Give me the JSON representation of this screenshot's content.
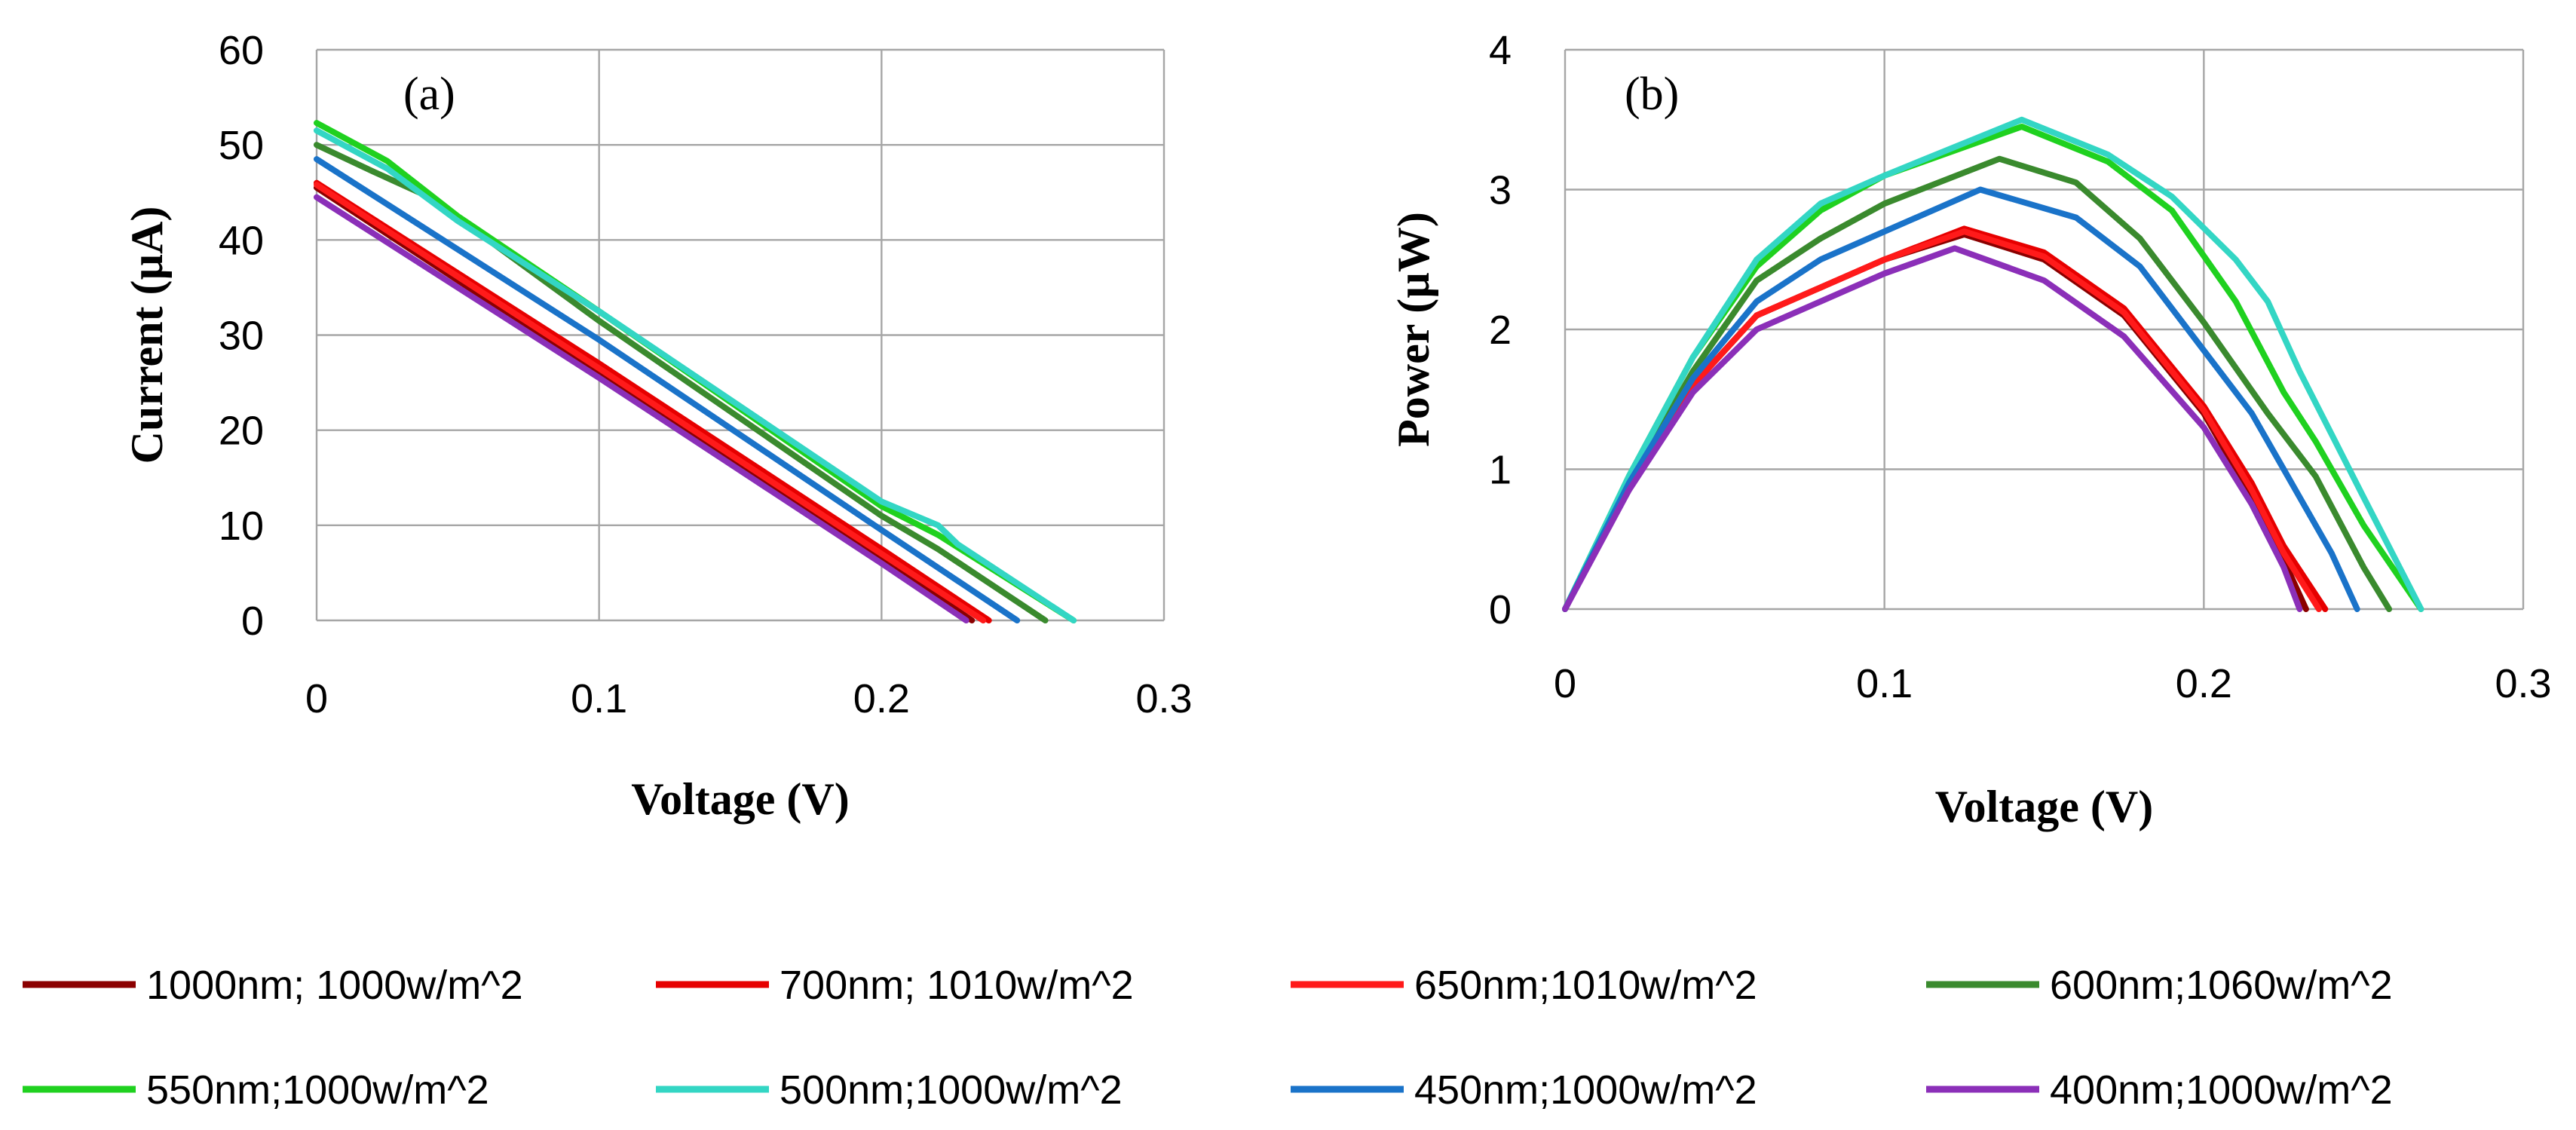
{
  "chart_data": [
    {
      "type": "line",
      "panel_label": "(a)",
      "xlabel": "Voltage (V)",
      "ylabel": "Current (µA)",
      "xlim": [
        0,
        0.3
      ],
      "ylim": [
        0,
        60
      ],
      "xticks": [
        "0",
        "0.1",
        "0.2",
        "0.3"
      ],
      "yticks": [
        "0",
        "10",
        "20",
        "30",
        "40",
        "50",
        "60"
      ],
      "grid": true,
      "series": [
        {
          "name": "1000nm; 1000w/m^2",
          "color": "#8b0000",
          "x": [
            0,
            0.1,
            0.2,
            0.232
          ],
          "y": [
            45.5,
            26.0,
            6.5,
            0
          ]
        },
        {
          "name": "700nm; 1010w/m^2",
          "color": "#e60000",
          "x": [
            0,
            0.1,
            0.2,
            0.238
          ],
          "y": [
            46.0,
            27.0,
            7.5,
            0
          ]
        },
        {
          "name": "650nm;1010w/m^2",
          "color": "#ff1a1a",
          "x": [
            0,
            0.1,
            0.2,
            0.236
          ],
          "y": [
            45.8,
            26.5,
            7.0,
            0
          ]
        },
        {
          "name": "600nm;1060w/m^2",
          "color": "#3a8a2e",
          "x": [
            0,
            0.02,
            0.04,
            0.1,
            0.2,
            0.22,
            0.258
          ],
          "y": [
            50.0,
            47.2,
            44.5,
            31.5,
            11.0,
            7.5,
            0
          ]
        },
        {
          "name": "550nm;1000w/m^2",
          "color": "#1fd11f",
          "x": [
            0,
            0.025,
            0.05,
            0.1,
            0.2,
            0.22,
            0.268
          ],
          "y": [
            52.3,
            48.3,
            42.5,
            32.5,
            12.0,
            9.0,
            0
          ]
        },
        {
          "name": "500nm;1000w/m^2",
          "color": "#33d6c4",
          "x": [
            0,
            0.025,
            0.05,
            0.1,
            0.2,
            0.22,
            0.227,
            0.268
          ],
          "y": [
            51.5,
            47.5,
            42.0,
            32.5,
            12.5,
            10.0,
            8.0,
            0
          ]
        },
        {
          "name": "450nm;1000w/m^2",
          "color": "#1a73c9",
          "x": [
            0,
            0.1,
            0.2,
            0.248
          ],
          "y": [
            48.5,
            29.5,
            9.5,
            0
          ]
        },
        {
          "name": "400nm;1000w/m^2",
          "color": "#8b2fb8",
          "x": [
            0,
            0.1,
            0.2,
            0.23
          ],
          "y": [
            44.5,
            25.5,
            6.0,
            0
          ]
        }
      ]
    },
    {
      "type": "line",
      "panel_label": "(b)",
      "xlabel": "Voltage (V)",
      "ylabel": "Power (µW)",
      "xlim": [
        0,
        0.3
      ],
      "ylim": [
        0,
        4
      ],
      "xticks": [
        "0",
        "0.1",
        "0.2",
        "0.3"
      ],
      "yticks": [
        "0",
        "1",
        "2",
        "3",
        "4"
      ],
      "grid": true,
      "series": [
        {
          "name": "1000nm; 1000w/m^2",
          "color": "#8b0000",
          "x": [
            0,
            0.02,
            0.04,
            0.06,
            0.08,
            0.1,
            0.125,
            0.15,
            0.175,
            0.2,
            0.215,
            0.225,
            0.232
          ],
          "y": [
            0,
            0.9,
            1.6,
            2.1,
            2.3,
            2.5,
            2.68,
            2.5,
            2.1,
            1.4,
            0.8,
            0.35,
            0
          ]
        },
        {
          "name": "700nm; 1010w/m^2",
          "color": "#e60000",
          "x": [
            0,
            0.02,
            0.04,
            0.06,
            0.08,
            0.1,
            0.125,
            0.15,
            0.175,
            0.2,
            0.215,
            0.225,
            0.238
          ],
          "y": [
            0,
            0.9,
            1.6,
            2.1,
            2.3,
            2.5,
            2.72,
            2.55,
            2.15,
            1.45,
            0.9,
            0.45,
            0
          ]
        },
        {
          "name": "650nm;1010w/m^2",
          "color": "#ff1a1a",
          "x": [
            0,
            0.02,
            0.04,
            0.06,
            0.08,
            0.1,
            0.125,
            0.15,
            0.175,
            0.2,
            0.215,
            0.225,
            0.236
          ],
          "y": [
            0,
            0.9,
            1.6,
            2.1,
            2.3,
            2.5,
            2.7,
            2.52,
            2.12,
            1.42,
            0.85,
            0.4,
            0
          ]
        },
        {
          "name": "600nm;1060w/m^2",
          "color": "#3a8a2e",
          "x": [
            0,
            0.02,
            0.04,
            0.06,
            0.08,
            0.1,
            0.136,
            0.16,
            0.18,
            0.2,
            0.22,
            0.235,
            0.25,
            0.258
          ],
          "y": [
            0,
            0.9,
            1.7,
            2.35,
            2.65,
            2.9,
            3.22,
            3.05,
            2.65,
            2.05,
            1.4,
            0.95,
            0.3,
            0
          ]
        },
        {
          "name": "550nm;1000w/m^2",
          "color": "#1fd11f",
          "x": [
            0,
            0.02,
            0.04,
            0.06,
            0.08,
            0.1,
            0.143,
            0.17,
            0.19,
            0.21,
            0.225,
            0.235,
            0.25,
            0.268
          ],
          "y": [
            0,
            0.95,
            1.8,
            2.45,
            2.85,
            3.1,
            3.45,
            3.2,
            2.85,
            2.2,
            1.55,
            1.2,
            0.6,
            0
          ]
        },
        {
          "name": "500nm;1000w/m^2",
          "color": "#33d6c4",
          "x": [
            0,
            0.02,
            0.04,
            0.06,
            0.08,
            0.1,
            0.143,
            0.17,
            0.19,
            0.21,
            0.22,
            0.23,
            0.24,
            0.25,
            0.268
          ],
          "y": [
            0,
            0.95,
            1.8,
            2.5,
            2.9,
            3.1,
            3.5,
            3.25,
            2.95,
            2.5,
            2.2,
            1.7,
            1.25,
            0.8,
            0
          ]
        },
        {
          "name": "450nm;1000w/m^2",
          "color": "#1a73c9",
          "x": [
            0,
            0.02,
            0.04,
            0.06,
            0.08,
            0.1,
            0.13,
            0.16,
            0.18,
            0.2,
            0.215,
            0.225,
            0.24,
            0.248
          ],
          "y": [
            0,
            0.9,
            1.65,
            2.2,
            2.5,
            2.7,
            3.0,
            2.8,
            2.45,
            1.85,
            1.4,
            1.0,
            0.4,
            0
          ]
        },
        {
          "name": "400nm;1000w/m^2",
          "color": "#8b2fb8",
          "x": [
            0,
            0.02,
            0.04,
            0.06,
            0.08,
            0.1,
            0.122,
            0.15,
            0.175,
            0.2,
            0.215,
            0.225,
            0.23
          ],
          "y": [
            0,
            0.85,
            1.55,
            2.0,
            2.2,
            2.4,
            2.58,
            2.35,
            1.95,
            1.3,
            0.75,
            0.3,
            0
          ]
        }
      ]
    }
  ],
  "legend": [
    {
      "label": "1000nm; 1000w/m^2",
      "color": "#8b0000"
    },
    {
      "label": "700nm; 1010w/m^2",
      "color": "#e60000"
    },
    {
      "label": "650nm;1010w/m^2",
      "color": "#ff1a1a"
    },
    {
      "label": "600nm;1060w/m^2",
      "color": "#3a8a2e"
    },
    {
      "label": "550nm;1000w/m^2",
      "color": "#1fd11f"
    },
    {
      "label": "500nm;1000w/m^2",
      "color": "#33d6c4"
    },
    {
      "label": "450nm;1000w/m^2",
      "color": "#1a73c9"
    },
    {
      "label": "400nm;1000w/m^2",
      "color": "#8b2fb8"
    }
  ]
}
